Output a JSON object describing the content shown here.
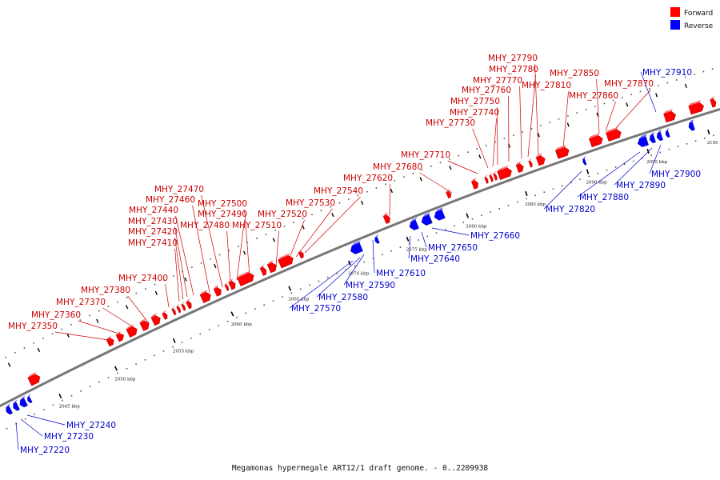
{
  "caption": "Megamonas hypermegale ART12/1 draft genome. - 0..2209938",
  "legend": [
    {
      "label": "Forward",
      "color": "#ff0000"
    },
    {
      "label": "Reverse",
      "color": "#0000ff"
    }
  ],
  "colors": {
    "forward": "#ff0000",
    "reverse": "#0000ff",
    "forward_text": "#cc0000",
    "reverse_text": "#0000cc",
    "backbone": "#777777"
  },
  "kbp_ticks": [
    {
      "label": "2045 kbp",
      "kbp": 2045
    },
    {
      "label": "2050 kbp",
      "kbp": 2050
    },
    {
      "label": "2055 kbp",
      "kbp": 2055
    },
    {
      "label": "2060 kbp",
      "kbp": 2060
    },
    {
      "label": "2065 kbp",
      "kbp": 2065
    },
    {
      "label": "2070 kbp",
      "kbp": 2070
    },
    {
      "label": "2075 kbp",
      "kbp": 2075
    },
    {
      "label": "2080 kbp",
      "kbp": 2080
    },
    {
      "label": "2085 kbp",
      "kbp": 2085
    },
    {
      "label": "2090 kbp",
      "kbp": 2090
    },
    {
      "label": "2095 kbp",
      "kbp": 2095
    },
    {
      "label": "2100 kbp",
      "kbp": 2100
    }
  ],
  "genes": [
    {
      "label": "MHY_27220",
      "strand": "reverse"
    },
    {
      "label": "MHY_27230",
      "strand": "reverse"
    },
    {
      "label": "MHY_27240",
      "strand": "reverse"
    },
    {
      "label": "MHY_27350",
      "strand": "forward"
    },
    {
      "label": "MHY_27360",
      "strand": "forward"
    },
    {
      "label": "MHY_27370",
      "strand": "forward"
    },
    {
      "label": "MHY_27380",
      "strand": "forward"
    },
    {
      "label": "MHY_27400",
      "strand": "forward"
    },
    {
      "label": "MHY_27410",
      "strand": "forward"
    },
    {
      "label": "MHY_27420",
      "strand": "forward"
    },
    {
      "label": "MHY_27430",
      "strand": "forward"
    },
    {
      "label": "MHY_27440",
      "strand": "forward"
    },
    {
      "label": "MHY_27460",
      "strand": "forward"
    },
    {
      "label": "MHY_27470",
      "strand": "forward"
    },
    {
      "label": "MHY_27480",
      "strand": "forward"
    },
    {
      "label": "MHY_27490",
      "strand": "forward"
    },
    {
      "label": "MHY_27500",
      "strand": "forward"
    },
    {
      "label": "MHY_27510",
      "strand": "forward"
    },
    {
      "label": "MHY_27520",
      "strand": "forward"
    },
    {
      "label": "MHY_27530",
      "strand": "forward"
    },
    {
      "label": "MHY_27540",
      "strand": "forward"
    },
    {
      "label": "MHY_27570",
      "strand": "reverse"
    },
    {
      "label": "MHY_27580",
      "strand": "reverse"
    },
    {
      "label": "MHY_27590",
      "strand": "reverse"
    },
    {
      "label": "MHY_27610",
      "strand": "reverse"
    },
    {
      "label": "MHY_27620",
      "strand": "forward"
    },
    {
      "label": "MHY_27640",
      "strand": "reverse"
    },
    {
      "label": "MHY_27650",
      "strand": "reverse"
    },
    {
      "label": "MHY_27660",
      "strand": "reverse"
    },
    {
      "label": "MHY_27680",
      "strand": "forward"
    },
    {
      "label": "MHY_27710",
      "strand": "forward"
    },
    {
      "label": "MHY_27730",
      "strand": "forward"
    },
    {
      "label": "MHY_27740",
      "strand": "forward"
    },
    {
      "label": "MHY_27750",
      "strand": "forward"
    },
    {
      "label": "MHY_27760",
      "strand": "forward"
    },
    {
      "label": "MHY_27770",
      "strand": "forward"
    },
    {
      "label": "MHY_27780",
      "strand": "forward"
    },
    {
      "label": "MHY_27790",
      "strand": "forward"
    },
    {
      "label": "MHY_27810",
      "strand": "forward"
    },
    {
      "label": "MHY_27820",
      "strand": "reverse"
    },
    {
      "label": "MHY_27850",
      "strand": "forward"
    },
    {
      "label": "MHY_27860",
      "strand": "forward"
    },
    {
      "label": "MHY_27870",
      "strand": "forward"
    },
    {
      "label": "MHY_27880",
      "strand": "reverse"
    },
    {
      "label": "MHY_27890",
      "strand": "reverse"
    },
    {
      "label": "MHY_27900",
      "strand": "reverse"
    },
    {
      "label": "MHY_27910",
      "strand": "reverse"
    }
  ]
}
